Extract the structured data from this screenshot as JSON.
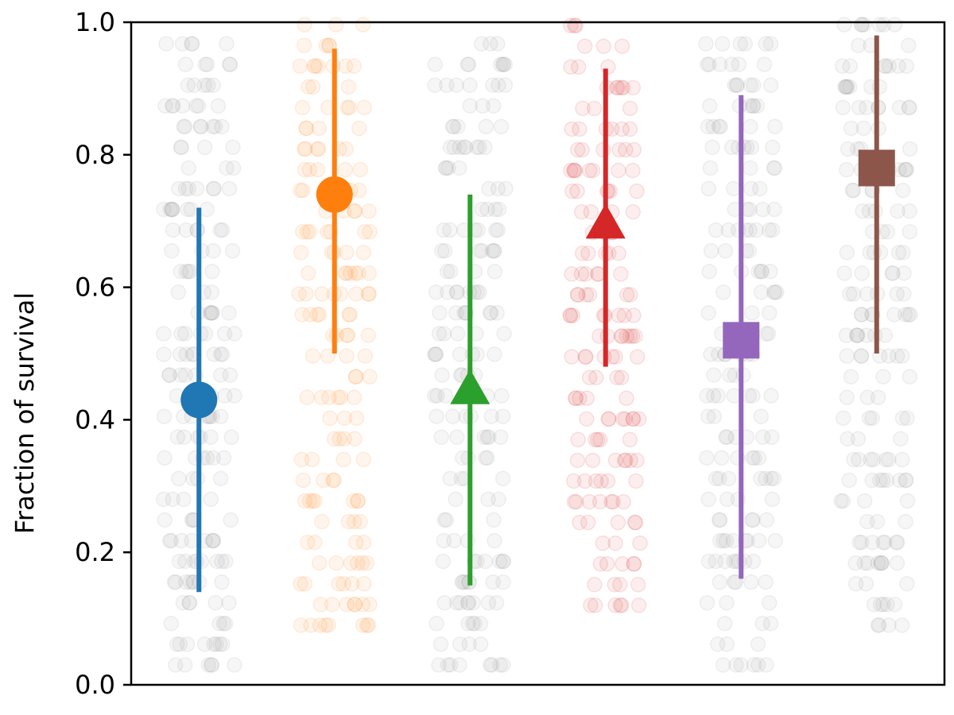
{
  "chart_data": {
    "type": "scatter",
    "ylabel": "Fraction of survival",
    "xlabel": "",
    "ylim": [
      0,
      1
    ],
    "yticks": [
      "0.0",
      "0.2",
      "0.4",
      "0.6",
      "0.8",
      "1.0"
    ],
    "grid": false,
    "legend": "none",
    "series": [
      {
        "color": "#1f77b4",
        "marker": "circle",
        "mean": 0.43,
        "lower": 0.14,
        "upper": 0.72,
        "points_range": [
          0.03,
          0.97
        ],
        "strip_color": "gray"
      },
      {
        "color": "#ff7f0e",
        "marker": "circle",
        "mean": 0.74,
        "lower": 0.5,
        "upper": 0.96,
        "points_range": [
          0.09,
          1.0
        ],
        "strip_color": "series"
      },
      {
        "color": "#2ca02c",
        "marker": "triangle",
        "mean": 0.45,
        "lower": 0.15,
        "upper": 0.74,
        "points_range": [
          0.03,
          0.97
        ],
        "strip_color": "gray"
      },
      {
        "color": "#d62728",
        "marker": "triangle",
        "mean": 0.7,
        "lower": 0.48,
        "upper": 0.93,
        "points_range": [
          0.12,
          1.0
        ],
        "strip_color": "series"
      },
      {
        "color": "#9467bd",
        "marker": "square",
        "mean": 0.52,
        "lower": 0.16,
        "upper": 0.89,
        "points_range": [
          0.03,
          0.97
        ],
        "strip_color": "gray"
      },
      {
        "color": "#8c564b",
        "marker": "square",
        "mean": 0.78,
        "lower": 0.5,
        "upper": 0.98,
        "points_range": [
          0.09,
          1.0
        ],
        "strip_color": "gray"
      }
    ]
  }
}
